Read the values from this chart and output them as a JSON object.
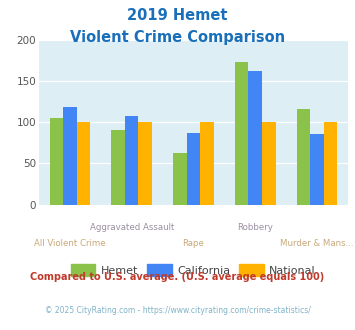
{
  "title_line1": "2019 Hemet",
  "title_line2": "Violent Crime Comparison",
  "categories": [
    "All Violent Crime",
    "Aggravated Assault",
    "Rape",
    "Robbery",
    "Murder & Mans..."
  ],
  "hemet_values": [
    105,
    90,
    63,
    173,
    116
  ],
  "california_values": [
    118,
    108,
    87,
    162,
    86
  ],
  "national_values": [
    100,
    100,
    100,
    100,
    100
  ],
  "hemet_color": "#8bc34a",
  "california_color": "#4285f4",
  "national_color": "#ffb300",
  "bg_color": "#ddeef5",
  "ylim": [
    0,
    200
  ],
  "yticks": [
    0,
    50,
    100,
    150,
    200
  ],
  "legend_labels": [
    "Hemet",
    "California",
    "National"
  ],
  "footer_text": "Compared to U.S. average. (U.S. average equals 100)",
  "credit_text": "© 2025 CityRating.com - https://www.cityrating.com/crime-statistics/",
  "title_color": "#1a6fba",
  "footer_color": "#c0392b",
  "credit_color": "#7fb3c8",
  "xlabel_gray_color": "#9a8fa0",
  "xlabel_tan_color": "#c8a878"
}
